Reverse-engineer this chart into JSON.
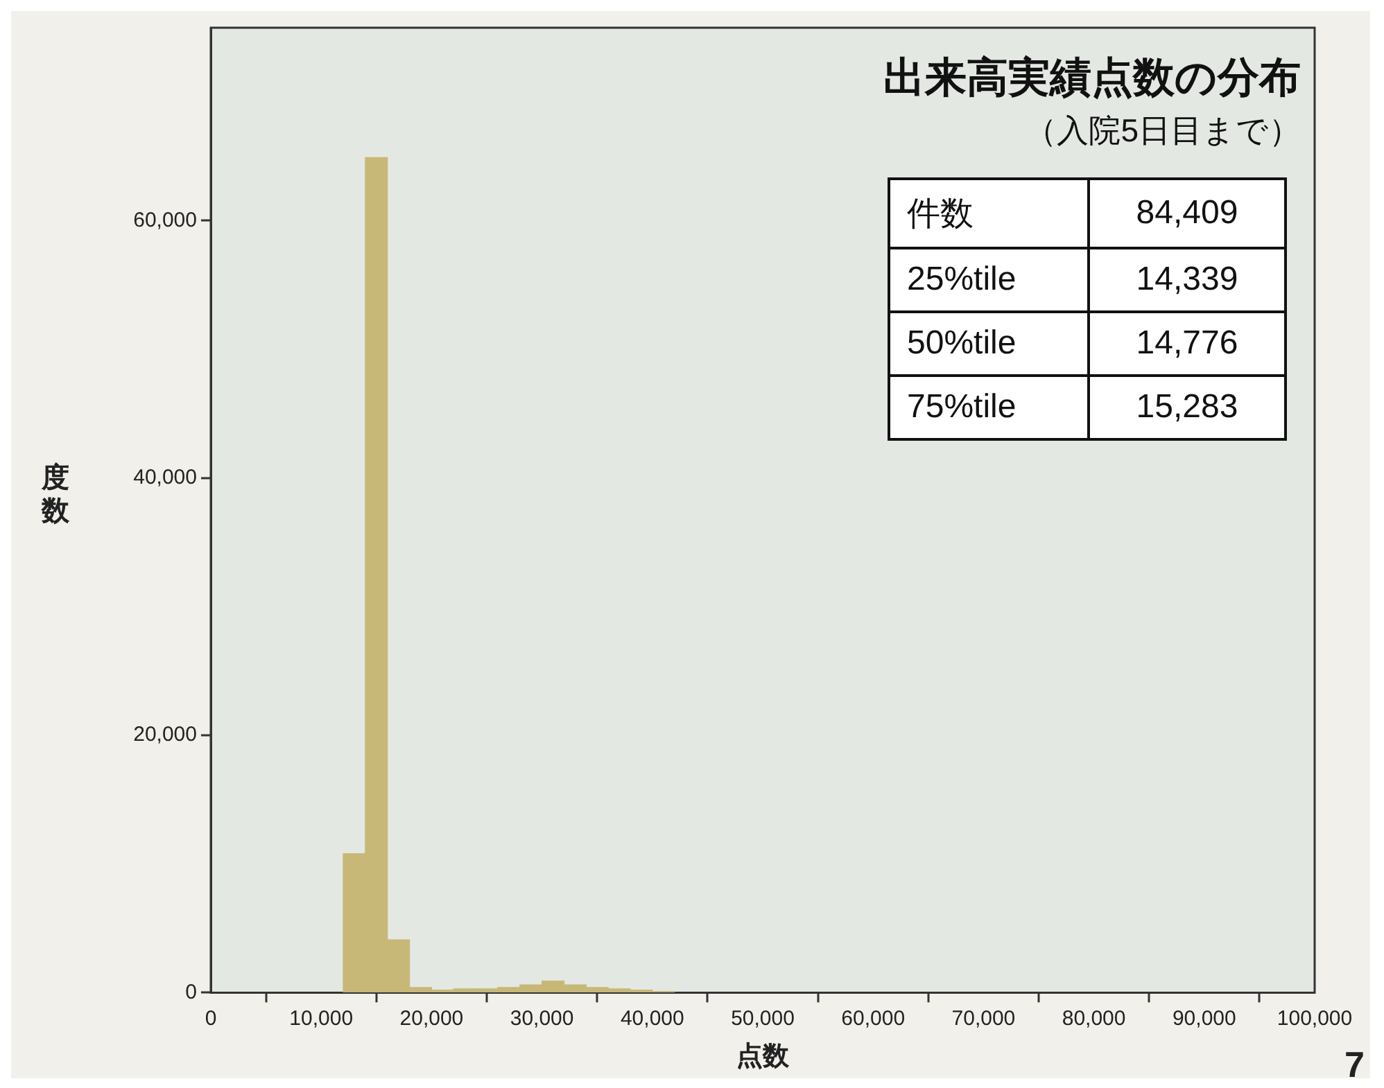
{
  "chart_data": {
    "type": "histogram",
    "title": "出来高実績点数の分布",
    "subtitle": "（入院5日目まで）",
    "xlabel": "点数",
    "ylabel": "度数",
    "bins": [
      12000,
      14000,
      16000,
      18000,
      20000,
      22000,
      24000,
      26000,
      28000,
      30000,
      32000,
      34000,
      36000,
      38000,
      40000,
      42000
    ],
    "values": [
      10800,
      64900,
      4100,
      400,
      200,
      300,
      300,
      400,
      600,
      900,
      600,
      400,
      300,
      200,
      100
    ],
    "color": "#c8b878",
    "xlim": [
      0,
      100000
    ],
    "xticks": [
      0,
      {
        "value": 10000,
        "label": "10,000"
      },
      {
        "value": 20000,
        "label": "20,000"
      },
      {
        "value": 30000,
        "label": "30,000"
      },
      {
        "value": 40000,
        "label": "40,000"
      },
      {
        "value": 50000,
        "label": "50,000"
      },
      {
        "value": 60000,
        "label": "60,000"
      },
      {
        "value": 70000,
        "label": "70,000"
      },
      {
        "value": 80000,
        "label": "80,000"
      },
      {
        "value": 90000,
        "label": "90,000"
      },
      {
        "value": 100000,
        "label": "100,000"
      }
    ],
    "ylim": [
      0,
      75000
    ],
    "yticks": [
      0,
      {
        "value": 20000,
        "label": "20,000"
      },
      {
        "value": 40000,
        "label": "40,000"
      },
      {
        "value": 60000,
        "label": "60,000"
      }
    ],
    "grid": false,
    "annotations": [
      "件数",
      "84,409",
      "25%tile",
      "14,339",
      "50%tile",
      "14,776",
      "75%tile",
      "15,283",
      "7"
    ]
  }
}
